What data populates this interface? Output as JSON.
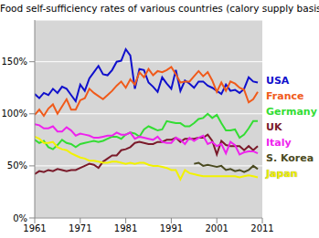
{
  "chart_data": {
    "type": "line",
    "title": "Food self-sufficiency rates of various countries (calory supply basis)",
    "x": [
      1961,
      1962,
      1963,
      1964,
      1965,
      1966,
      1967,
      1968,
      1969,
      1970,
      1971,
      1972,
      1973,
      1974,
      1975,
      1976,
      1977,
      1978,
      1979,
      1980,
      1981,
      1982,
      1983,
      1984,
      1985,
      1986,
      1987,
      1988,
      1989,
      1990,
      1991,
      1992,
      1993,
      1994,
      1995,
      1996,
      1997,
      1998,
      1999,
      2000,
      2001,
      2002,
      2003,
      2004,
      2005,
      2006,
      2007,
      2008,
      2009,
      2010
    ],
    "xlim": [
      1961,
      2011
    ],
    "xticks": [
      1961,
      1971,
      1981,
      1991,
      2001,
      2011
    ],
    "ylim": [
      0,
      190
    ],
    "yticks": [
      {
        "value": 0,
        "label": "0%"
      },
      {
        "value": 50,
        "label": "50%"
      },
      {
        "value": 100,
        "label": "100%"
      },
      {
        "value": 150,
        "label": "150%"
      }
    ],
    "grid": true,
    "legend": "right",
    "series": [
      {
        "name": "USA",
        "color": "#1010cc",
        "values": [
          119,
          115,
          120,
          118,
          124,
          120,
          126,
          124,
          118,
          112,
          128,
          122,
          134,
          140,
          146,
          138,
          137,
          142,
          150,
          151,
          162,
          156,
          124,
          143,
          142,
          130,
          126,
          121,
          135,
          129,
          124,
          142,
          122,
          132,
          129,
          125,
          131,
          131,
          127,
          125,
          122,
          119,
          128,
          122,
          123,
          120,
          124,
          135,
          131,
          130
        ]
      },
      {
        "name": "France",
        "color": "#f05a1a",
        "values": [
          99,
          104,
          98,
          105,
          109,
          100,
          107,
          114,
          104,
          104,
          113,
          115,
          124,
          120,
          117,
          114,
          118,
          122,
          127,
          131,
          125,
          133,
          128,
          140,
          135,
          143,
          137,
          141,
          140,
          142,
          145,
          138,
          130,
          131,
          131,
          136,
          141,
          136,
          140,
          132,
          121,
          130,
          122,
          131,
          129,
          125,
          123,
          111,
          114,
          121
        ]
      },
      {
        "name": "Germany",
        "color": "#33dd33",
        "values": [
          75,
          72,
          74,
          68,
          66,
          70,
          75,
          72,
          71,
          68,
          71,
          72,
          73,
          74,
          73,
          74,
          76,
          78,
          78,
          76,
          80,
          82,
          81,
          78,
          85,
          88,
          86,
          84,
          85,
          93,
          92,
          91,
          91,
          88,
          88,
          91,
          95,
          96,
          100,
          96,
          99,
          91,
          84,
          84,
          85,
          77,
          80,
          86,
          93,
          93
        ]
      },
      {
        "name": "UK",
        "color": "#7a1a2a",
        "values": [
          42,
          45,
          44,
          46,
          45,
          47,
          46,
          45,
          46,
          46,
          48,
          50,
          52,
          51,
          48,
          54,
          57,
          60,
          60,
          65,
          66,
          68,
          72,
          73,
          72,
          71,
          71,
          73,
          73,
          75,
          75,
          77,
          73,
          76,
          76,
          76,
          77,
          77,
          80,
          74,
          61,
          74,
          70,
          69,
          69,
          69,
          65,
          69,
          65,
          69
        ]
      },
      {
        "name": "Italy",
        "color": "#ee22ee",
        "values": [
          90,
          89,
          86,
          86,
          88,
          83,
          83,
          87,
          84,
          79,
          81,
          80,
          79,
          77,
          77,
          78,
          79,
          79,
          82,
          80,
          80,
          82,
          76,
          78,
          77,
          76,
          75,
          78,
          73,
          72,
          72,
          77,
          75,
          71,
          77,
          74,
          77,
          79,
          71,
          73,
          69,
          71,
          62,
          73,
          70,
          61,
          63,
          64,
          64,
          62
        ]
      },
      {
        "name": "S. Korea",
        "color": "#4a4a20",
        "values": [
          null,
          null,
          null,
          null,
          null,
          null,
          null,
          null,
          null,
          null,
          null,
          null,
          null,
          null,
          null,
          null,
          null,
          null,
          null,
          null,
          null,
          null,
          null,
          null,
          null,
          null,
          null,
          null,
          null,
          null,
          null,
          null,
          null,
          null,
          null,
          52,
          53,
          50,
          51,
          50,
          49,
          50,
          46,
          47,
          45,
          46,
          44,
          46,
          50,
          47
        ]
      },
      {
        "name": "Japan",
        "color": "#f2f200",
        "values": [
          78,
          76,
          72,
          72,
          73,
          68,
          66,
          65,
          62,
          60,
          58,
          57,
          55,
          55,
          54,
          53,
          53,
          54,
          54,
          53,
          52,
          53,
          52,
          53,
          53,
          51,
          50,
          50,
          49,
          48,
          46,
          46,
          37,
          46,
          43,
          42,
          41,
          40,
          40,
          40,
          40,
          40,
          40,
          40,
          40,
          39,
          40,
          41,
          40,
          39
        ]
      }
    ]
  }
}
